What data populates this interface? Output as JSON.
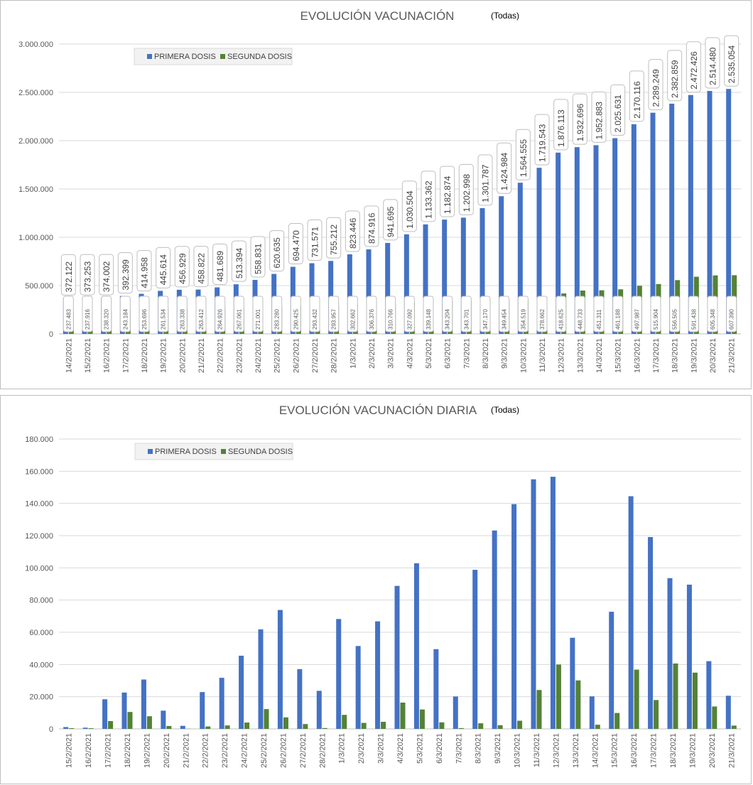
{
  "chart_data": [
    {
      "type": "bar",
      "title": "EVOLUCIÓN VACUNACIÓN",
      "subtitle": "(Todas)",
      "ylim": [
        0,
        3000000
      ],
      "yticks": [
        "0",
        "500.000",
        "1.000.000",
        "1.500.000",
        "2.000.000",
        "2.500.000",
        "3.000.000"
      ],
      "grid": true,
      "legend_position": "top-left",
      "categories": [
        "14/2/2021",
        "15/2/2021",
        "16/2/2021",
        "17/2/2021",
        "18/2/2021",
        "19/2/2021",
        "20/2/2021",
        "21/2/2021",
        "22/2/2021",
        "23/2/2021",
        "24/2/2021",
        "25/2/2021",
        "26/2/2021",
        "27/2/2021",
        "28/2/2021",
        "1/3/2021",
        "2/3/2021",
        "3/3/2021",
        "4/3/2021",
        "5/3/2021",
        "6/3/2021",
        "7/3/2021",
        "8/3/2021",
        "9/3/2021",
        "10/3/2021",
        "11/3/2021",
        "12/3/2021",
        "13/3/2021",
        "14/3/2021",
        "15/3/2021",
        "16/3/2021",
        "17/3/2021",
        "18/3/2021",
        "19/3/2021",
        "20/3/2021",
        "21/3/2021"
      ],
      "series": [
        {
          "name": "PRIMERA DOSIS",
          "color": "#4472c4",
          "values": [
            372122,
            373253,
            374002,
            392399,
            414958,
            445614,
            456929,
            458822,
            481689,
            513394,
            558831,
            620635,
            694470,
            731571,
            755212,
            823446,
            874916,
            941695,
            1030504,
            1133362,
            1182874,
            1202998,
            1301787,
            1424984,
            1564555,
            1719543,
            1876113,
            1932696,
            1952883,
            2025631,
            2170116,
            2289249,
            2382859,
            2472426,
            2514480,
            2535054
          ],
          "labels": [
            "372.122",
            "373.253",
            "374.002",
            "392.399",
            "414.958",
            "445.614",
            "456.929",
            "458.822",
            "481.689",
            "513.394",
            "558.831",
            "620.635",
            "694.470",
            "731.571",
            "755.212",
            "823.446",
            "874.916",
            "941.695",
            "1.030.504",
            "1.133.362",
            "1.182.874",
            "1.202.998",
            "1.301.787",
            "1.424.984",
            "1.564.555",
            "1.719.543",
            "1.876.113",
            "1.932.696",
            "1.952.883",
            "2.025.631",
            "2.170.116",
            "2.289.249",
            "2.382.859",
            "2.472.426",
            "2.514.480",
            "2.535.054"
          ]
        },
        {
          "name": "SEGUNDA DOSIS",
          "color": "#548235",
          "values": [
            237483,
            237916,
            238320,
            243184,
            253696,
            261534,
            263338,
            263412,
            264926,
            267061,
            271001,
            283280,
            290425,
            293432,
            293957,
            302662,
            306376,
            310766,
            327092,
            339148,
            343204,
            343701,
            347170,
            349454,
            354519,
            378662,
            418625,
            448733,
            451311,
            461188,
            497987,
            515904,
            556505,
            591438,
            605348,
            607390
          ],
          "labels": [
            "237.483",
            "237.916",
            "238.320",
            "243.184",
            "253.696",
            "261.534",
            "263.338",
            "263.412",
            "264.926",
            "267.061",
            "271.001",
            "283.280",
            "290.425",
            "293.432",
            "293.957",
            "302.662",
            "306.376",
            "310.766",
            "327.092",
            "339.148",
            "343.204",
            "343.701",
            "347.170",
            "349.454",
            "354.519",
            "378.662",
            "418.625",
            "448.733",
            "451.311",
            "461.188",
            "497.987",
            "515.904",
            "556.505",
            "591.438",
            "605.348",
            "607.390"
          ]
        }
      ]
    },
    {
      "type": "bar",
      "title": "EVOLUCIÓN VACUNACIÓN DIARIA",
      "subtitle": "(Todas)",
      "ylim": [
        0,
        180000
      ],
      "yticks": [
        "0",
        "20.000",
        "40.000",
        "60.000",
        "80.000",
        "100.000",
        "120.000",
        "140.000",
        "160.000",
        "180.000"
      ],
      "grid": true,
      "legend_position": "top-left",
      "categories": [
        "15/2/2021",
        "16/2/2021",
        "17/2/2021",
        "18/2/2021",
        "19/2/2021",
        "20/2/2021",
        "21/2/2021",
        "22/2/2021",
        "23/2/2021",
        "24/2/2021",
        "25/2/2021",
        "26/2/2021",
        "27/2/2021",
        "28/2/2021",
        "1/3/2021",
        "2/3/2021",
        "3/3/2021",
        "4/3/2021",
        "5/3/2021",
        "6/3/2021",
        "7/3/2021",
        "8/3/2021",
        "9/3/2021",
        "10/3/2021",
        "11/3/2021",
        "12/3/2021",
        "13/3/2021",
        "14/3/2021",
        "15/3/2021",
        "16/3/2021",
        "17/3/2021",
        "18/3/2021",
        "19/3/2021",
        "20/3/2021",
        "21/3/2021"
      ],
      "series": [
        {
          "name": "PRIMERA DOSIS",
          "color": "#4472c4",
          "values": [
            1131,
            749,
            18397,
            22559,
            30656,
            11315,
            1893,
            22867,
            31705,
            45437,
            61804,
            73835,
            37101,
            23641,
            68234,
            51470,
            66779,
            88809,
            102858,
            49512,
            20124,
            98789,
            123197,
            139571,
            154988,
            156570,
            56583,
            20187,
            72748,
            144485,
            119133,
            93610,
            89567,
            42054,
            20574
          ]
        },
        {
          "name": "SEGUNDA DOSIS",
          "color": "#548235",
          "values": [
            433,
            404,
            4864,
            10512,
            7838,
            1804,
            74,
            1514,
            2135,
            3940,
            12279,
            7145,
            3007,
            525,
            8705,
            3714,
            4390,
            16326,
            12056,
            4056,
            497,
            3469,
            2284,
            5065,
            24143,
            39963,
            30108,
            2578,
            9877,
            36799,
            17917,
            40601,
            34933,
            13910,
            2042
          ]
        }
      ]
    }
  ]
}
